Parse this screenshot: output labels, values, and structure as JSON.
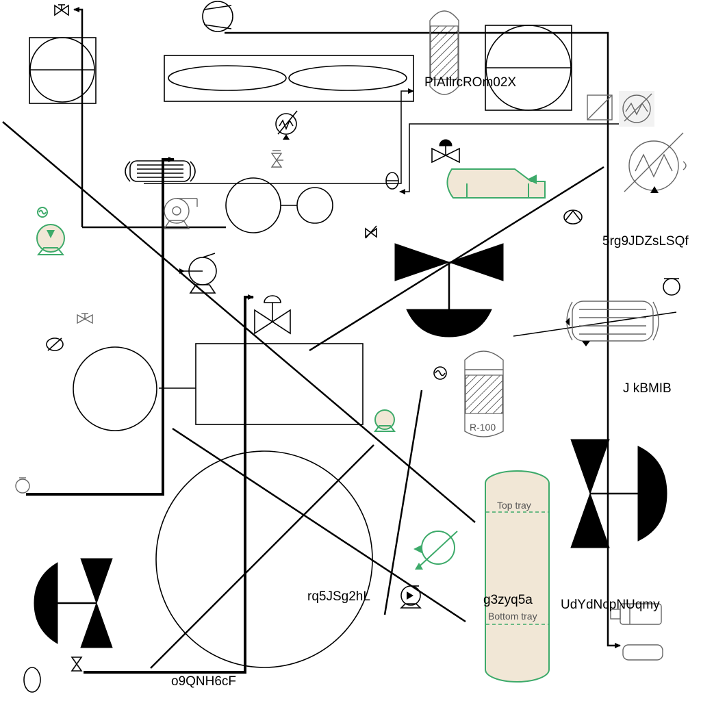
{
  "labels": {
    "label_1": "PIAIlrcROm02X",
    "label_2": "5rg9JDZsLSQf",
    "label_3": "J kBMIB",
    "label_4": "rq5JSg2hL",
    "label_5": "g3zyq5a",
    "label_6": "UdYdNcpNUqmy",
    "label_7": "o9QNH6cF"
  },
  "equipment_text": {
    "reactor_tag": "R-100",
    "top_tray": "Top tray",
    "bottom_tray": "Bottom tray"
  },
  "colors": {
    "line": "#000000",
    "green_accent": "#3daa6a",
    "beige_fill": "#f1e7d6"
  }
}
